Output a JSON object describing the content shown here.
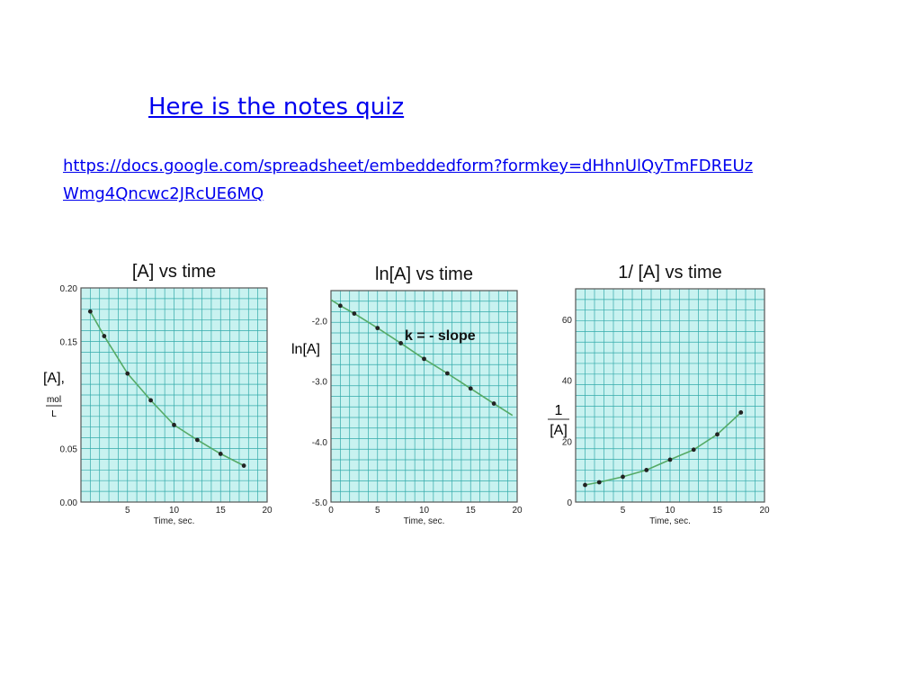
{
  "links": {
    "quiz_text": "Here is the notes quiz",
    "url_line1": "https://docs.google.com/spreadsheet/embeddedform?formkey=dHhnUlQyTmFDREUz",
    "url_line2": "Wmg4Qncwc2JRcUE6MQ"
  },
  "colors": {
    "plot_bg": "#c8f2f0",
    "grid": "#33aaaa",
    "curve": "#55aa66",
    "point": "#222222"
  },
  "chart_data": [
    {
      "type": "line",
      "title": "[A]  vs time",
      "xlabel": "Time, sec.",
      "ylabel": "[A],",
      "ylabel_frac_num": "mol",
      "ylabel_frac_den": "L",
      "xlim": [
        0,
        20
      ],
      "ylim": [
        0,
        0.2
      ],
      "xticks": [
        5,
        10,
        15,
        20
      ],
      "xtick_labels": [
        "5",
        "10",
        "15",
        "20"
      ],
      "yticks": [
        0,
        0.05,
        0.15,
        0.2
      ],
      "ytick_labels": [
        "0.00",
        "0.05",
        "0.15",
        "0.20"
      ],
      "grid": true,
      "x": [
        1,
        2.5,
        5,
        7.5,
        10,
        12.5,
        15,
        17.5
      ],
      "y": [
        0.178,
        0.155,
        0.12,
        0.095,
        0.072,
        0.058,
        0.045,
        0.034
      ]
    },
    {
      "type": "line",
      "title": "ln[A] vs time",
      "xlabel": "Time, sec.",
      "ylabel": "ln[A]",
      "annotation": "k = - slope",
      "xlim": [
        0,
        20
      ],
      "ylim": [
        -5,
        -1.5
      ],
      "xticks": [
        0,
        5,
        10,
        15,
        20
      ],
      "xtick_labels": [
        "0",
        "5",
        "10",
        "15",
        "20"
      ],
      "yticks": [
        -2,
        -3,
        -4,
        -5
      ],
      "ytick_labels": [
        "-2.0",
        "-3.0",
        "-4.0",
        "-5.0"
      ],
      "grid": true,
      "x": [
        1,
        2.5,
        5,
        7.5,
        10,
        12.5,
        15,
        17.5
      ],
      "y": [
        -1.75,
        -1.88,
        -2.12,
        -2.37,
        -2.63,
        -2.87,
        -3.12,
        -3.37
      ]
    },
    {
      "type": "line",
      "title": "1/ [A] vs time",
      "xlabel": "Time, sec.",
      "ylabel_frac_num": "1",
      "ylabel_frac_den": "[A]",
      "xlim": [
        0,
        20
      ],
      "ylim": [
        0,
        70
      ],
      "xticks": [
        5,
        10,
        15,
        20
      ],
      "xtick_labels": [
        "5",
        "10",
        "15",
        "20"
      ],
      "yticks": [
        0,
        20,
        40,
        60
      ],
      "ytick_labels": [
        "0",
        "20",
        "40",
        "60"
      ],
      "grid": true,
      "x": [
        1,
        2.5,
        5,
        7.5,
        10,
        12.5,
        15,
        17.5
      ],
      "y": [
        5.6,
        6.5,
        8.3,
        10.5,
        13.9,
        17.2,
        22.2,
        29.4
      ]
    }
  ]
}
